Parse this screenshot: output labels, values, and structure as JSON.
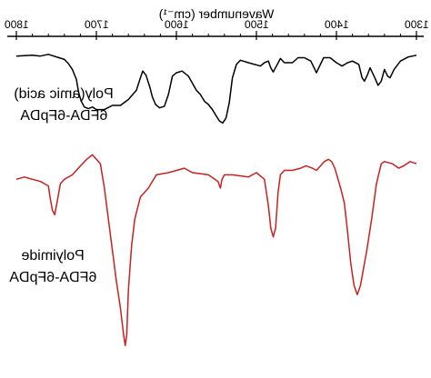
{
  "chart_data": {
    "type": "line",
    "mirrored_horizontally": true,
    "xlabel": "Wavenumber (cm⁻¹)",
    "xlim": [
      1800,
      1300
    ],
    "x_ticks": [
      {
        "value": 1800,
        "label": "1800"
      },
      {
        "value": 1700,
        "label": "1700"
      },
      {
        "value": 1600,
        "label": "1600"
      },
      {
        "value": 1500,
        "label": "1500"
      },
      {
        "value": 1400,
        "label": "1400"
      },
      {
        "value": 1300,
        "label": "1300"
      }
    ],
    "ylabel": "",
    "y_ticks": false,
    "grid": false,
    "colors": {
      "polyamic": "#000000",
      "polyimide": "#cc1f1f"
    },
    "series": [
      {
        "name": "6FDA-6FpDA Poly(amic acid)",
        "label_lines": [
          "Poly(amic acid)",
          "6FDA-6FpDA"
        ],
        "color": "#000000",
        "y_unit": "relative transmittance (0-1)",
        "points": [
          [
            1800,
            0.96
          ],
          [
            1780,
            0.97
          ],
          [
            1770,
            0.96
          ],
          [
            1760,
            0.98
          ],
          [
            1750,
            0.95
          ],
          [
            1740,
            0.92
          ],
          [
            1735,
            0.87
          ],
          [
            1730,
            0.8
          ],
          [
            1725,
            0.68
          ],
          [
            1722,
            0.52
          ],
          [
            1719,
            0.42
          ],
          [
            1715,
            0.35
          ],
          [
            1710,
            0.33
          ],
          [
            1705,
            0.35
          ],
          [
            1700,
            0.32
          ],
          [
            1690,
            0.32
          ],
          [
            1680,
            0.37
          ],
          [
            1670,
            0.37
          ],
          [
            1660,
            0.44
          ],
          [
            1650,
            0.55
          ],
          [
            1645,
            0.7
          ],
          [
            1642,
            0.78
          ],
          [
            1638,
            0.73
          ],
          [
            1633,
            0.58
          ],
          [
            1630,
            0.47
          ],
          [
            1626,
            0.38
          ],
          [
            1621,
            0.34
          ],
          [
            1615,
            0.36
          ],
          [
            1610,
            0.5
          ],
          [
            1605,
            0.72
          ],
          [
            1600,
            0.76
          ],
          [
            1593,
            0.78
          ],
          [
            1585,
            0.72
          ],
          [
            1575,
            0.55
          ],
          [
            1570,
            0.5
          ],
          [
            1565,
            0.42
          ],
          [
            1560,
            0.38
          ],
          [
            1555,
            0.32
          ],
          [
            1550,
            0.24
          ],
          [
            1546,
            0.18
          ],
          [
            1542,
            0.16
          ],
          [
            1538,
            0.22
          ],
          [
            1534,
            0.4
          ],
          [
            1530,
            0.7
          ],
          [
            1525,
            0.86
          ],
          [
            1520,
            0.91
          ],
          [
            1510,
            0.88
          ],
          [
            1495,
            0.84
          ],
          [
            1490,
            0.88
          ],
          [
            1485,
            0.9
          ],
          [
            1482,
            0.82
          ],
          [
            1479,
            0.77
          ],
          [
            1475,
            0.84
          ],
          [
            1470,
            0.93
          ],
          [
            1465,
            0.88
          ],
          [
            1455,
            0.88
          ],
          [
            1448,
            0.94
          ],
          [
            1440,
            0.94
          ],
          [
            1432,
            0.9
          ],
          [
            1428,
            0.82
          ],
          [
            1425,
            0.76
          ],
          [
            1421,
            0.84
          ],
          [
            1416,
            0.94
          ],
          [
            1408,
            0.94
          ],
          [
            1400,
            0.88
          ],
          [
            1393,
            0.84
          ],
          [
            1386,
            0.88
          ],
          [
            1380,
            0.9
          ],
          [
            1372,
            0.86
          ],
          [
            1368,
            0.7
          ],
          [
            1365,
            0.66
          ],
          [
            1361,
            0.74
          ],
          [
            1358,
            0.82
          ],
          [
            1352,
            0.7
          ],
          [
            1348,
            0.61
          ],
          [
            1344,
            0.66
          ],
          [
            1340,
            0.8
          ],
          [
            1336,
            0.72
          ],
          [
            1333,
            0.7
          ],
          [
            1328,
            0.8
          ],
          [
            1320,
            0.9
          ],
          [
            1310,
            0.95
          ],
          [
            1300,
            0.97
          ]
        ]
      },
      {
        "name": "6FDA-6FpDA Polyimide",
        "label_lines": [
          "Polyimide",
          "6FDA-6FpDA"
        ],
        "color": "#cc1f1f",
        "y_unit": "relative transmittance (0-1)",
        "points": [
          [
            1800,
            0.88
          ],
          [
            1790,
            0.89
          ],
          [
            1780,
            0.88
          ],
          [
            1770,
            0.87
          ],
          [
            1760,
            0.85
          ],
          [
            1758,
            0.8
          ],
          [
            1755,
            0.74
          ],
          [
            1752,
            0.72
          ],
          [
            1749,
            0.78
          ],
          [
            1745,
            0.86
          ],
          [
            1740,
            0.88
          ],
          [
            1730,
            0.9
          ],
          [
            1720,
            0.94
          ],
          [
            1712,
            0.97
          ],
          [
            1705,
            0.99
          ],
          [
            1700,
            0.97
          ],
          [
            1695,
            0.95
          ],
          [
            1690,
            0.84
          ],
          [
            1685,
            0.7
          ],
          [
            1680,
            0.56
          ],
          [
            1675,
            0.42
          ],
          [
            1670,
            0.3
          ],
          [
            1666,
            0.18
          ],
          [
            1664,
            0.13
          ],
          [
            1662,
            0.18
          ],
          [
            1660,
            0.38
          ],
          [
            1656,
            0.58
          ],
          [
            1652,
            0.7
          ],
          [
            1645,
            0.8
          ],
          [
            1635,
            0.84
          ],
          [
            1625,
            0.9
          ],
          [
            1610,
            0.91
          ],
          [
            1590,
            0.93
          ],
          [
            1580,
            0.91
          ],
          [
            1560,
            0.9
          ],
          [
            1548,
            0.87
          ],
          [
            1545,
            0.84
          ],
          [
            1543,
            0.88
          ],
          [
            1540,
            0.9
          ],
          [
            1530,
            0.9
          ],
          [
            1510,
            0.89
          ],
          [
            1500,
            0.91
          ],
          [
            1490,
            0.88
          ],
          [
            1485,
            0.76
          ],
          [
            1482,
            0.66
          ],
          [
            1479,
            0.62
          ],
          [
            1476,
            0.66
          ],
          [
            1473,
            0.82
          ],
          [
            1470,
            0.9
          ],
          [
            1465,
            0.92
          ],
          [
            1455,
            0.92
          ],
          [
            1445,
            0.93
          ],
          [
            1438,
            0.94
          ],
          [
            1430,
            0.93
          ],
          [
            1425,
            0.92
          ],
          [
            1420,
            0.94
          ],
          [
            1415,
            0.96
          ],
          [
            1410,
            0.97
          ],
          [
            1406,
            0.96
          ],
          [
            1402,
            0.93
          ],
          [
            1398,
            0.88
          ],
          [
            1394,
            0.83
          ],
          [
            1390,
            0.77
          ],
          [
            1386,
            0.64
          ],
          [
            1382,
            0.5
          ],
          [
            1378,
            0.4
          ],
          [
            1374,
            0.36
          ],
          [
            1370,
            0.4
          ],
          [
            1366,
            0.48
          ],
          [
            1362,
            0.56
          ],
          [
            1356,
            0.7
          ],
          [
            1350,
            0.86
          ],
          [
            1344,
            0.95
          ],
          [
            1340,
            0.96
          ],
          [
            1330,
            0.95
          ],
          [
            1322,
            0.93
          ],
          [
            1316,
            0.94
          ],
          [
            1308,
            0.96
          ],
          [
            1300,
            0.95
          ]
        ]
      }
    ]
  }
}
